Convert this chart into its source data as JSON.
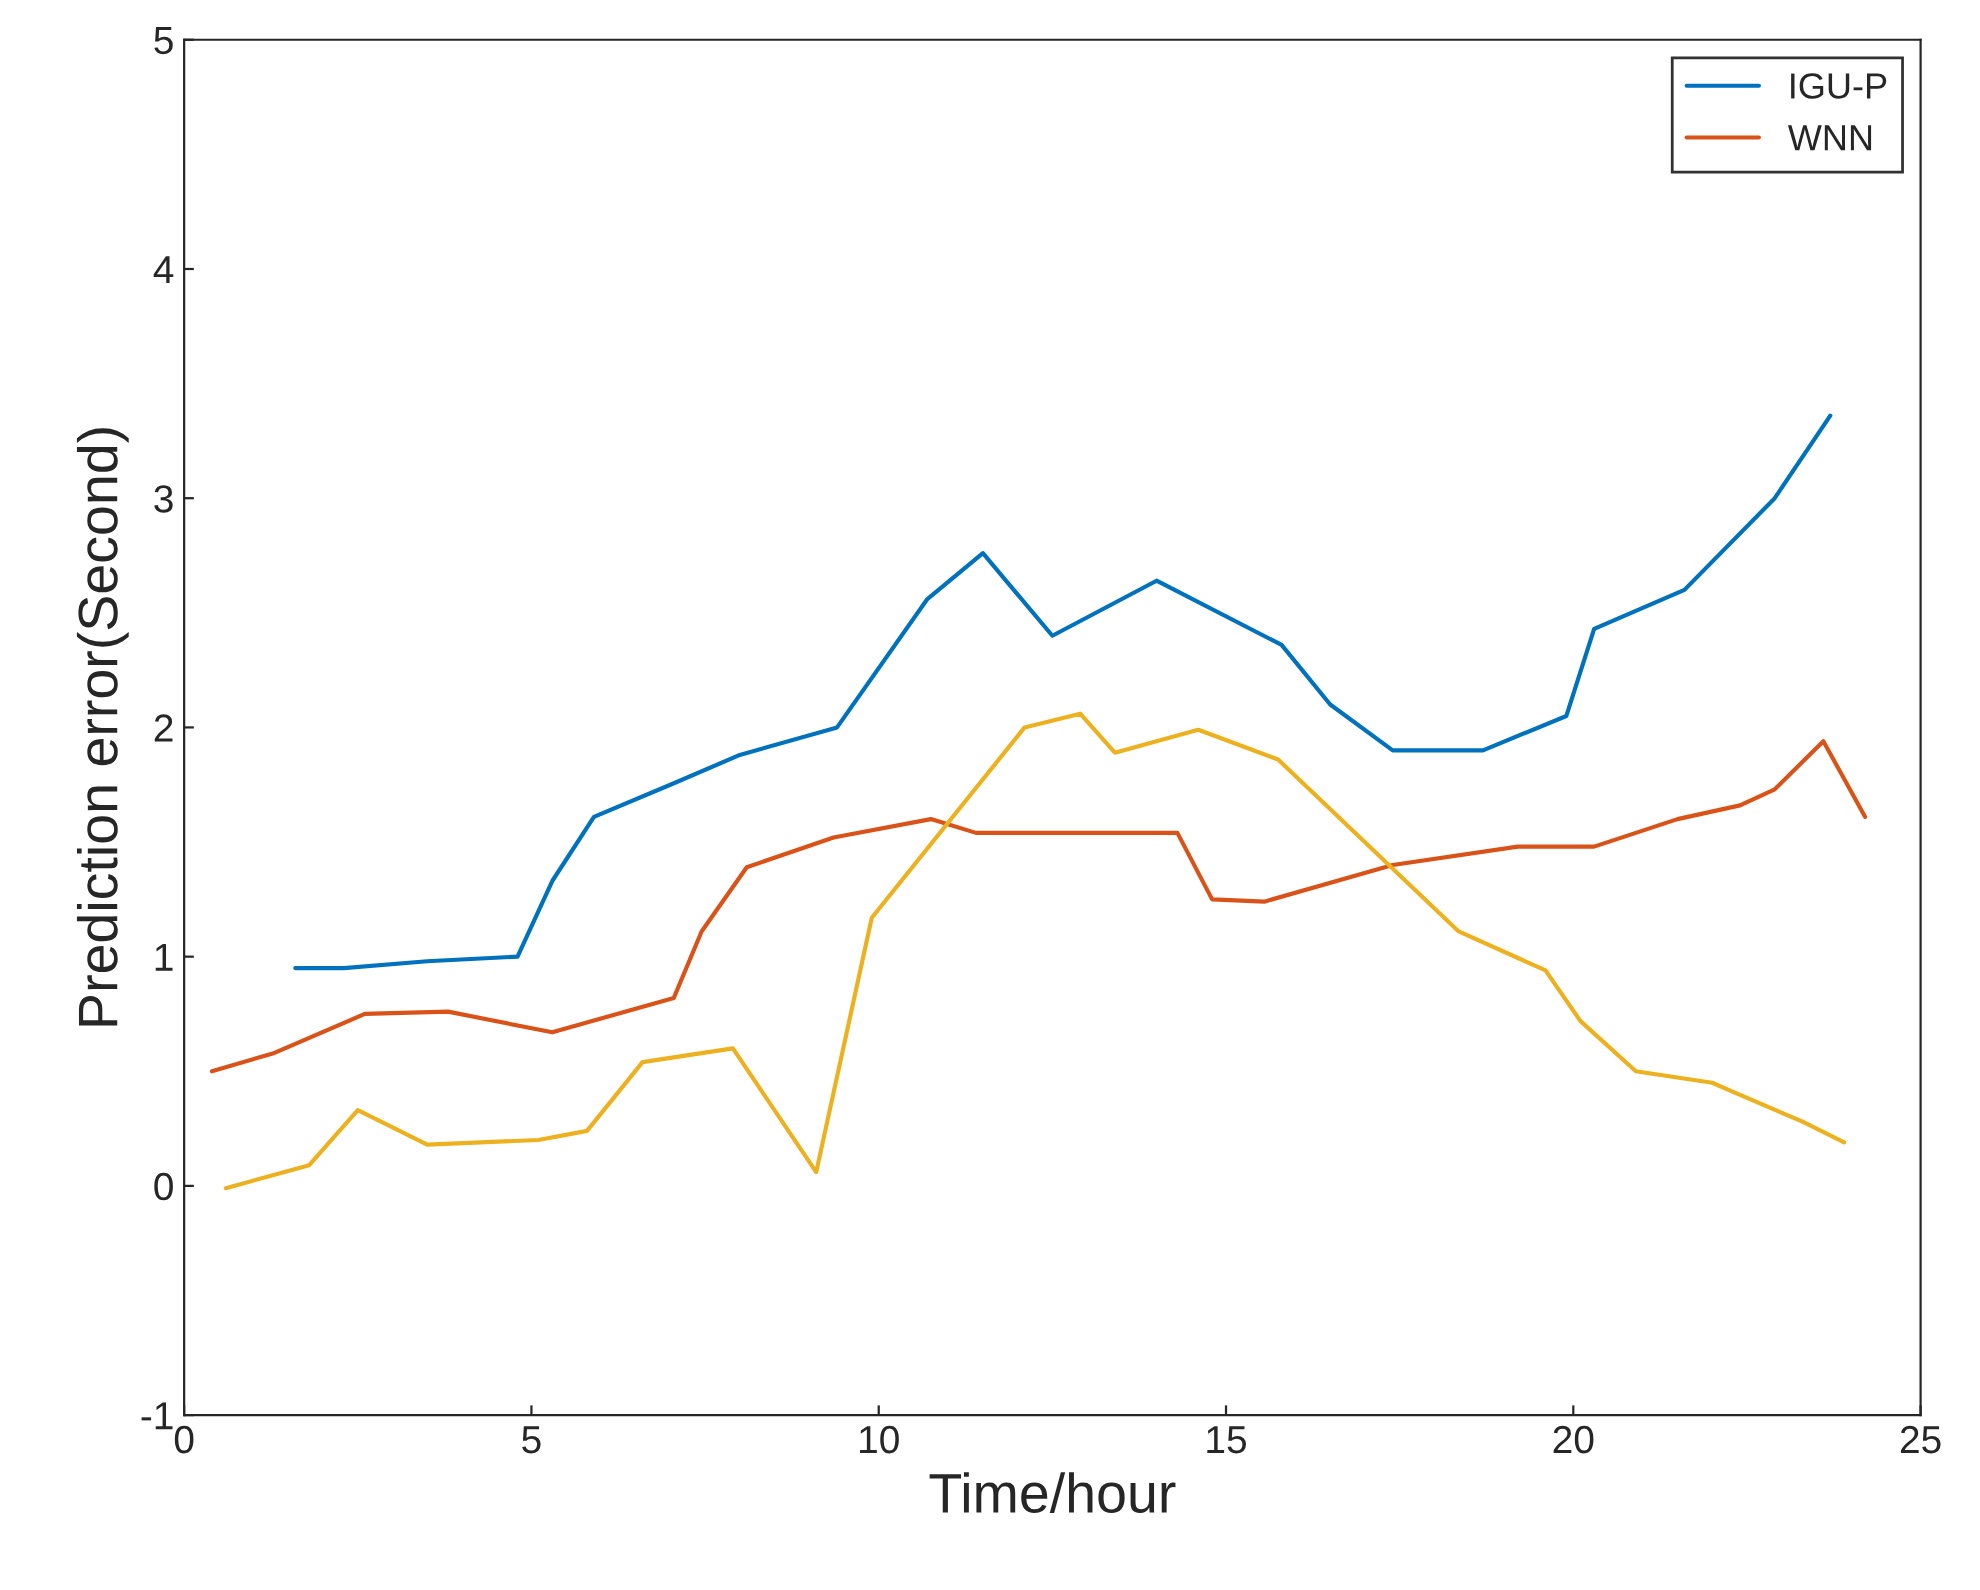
{
  "chart_data": {
    "type": "line",
    "xlabel": "Time/hour",
    "ylabel": "Prediction error(Second)",
    "xlim": [
      0,
      25
    ],
    "ylim": [
      -1,
      5
    ],
    "xticks": [
      0,
      5,
      10,
      15,
      20,
      25
    ],
    "yticks": [
      -1,
      0,
      1,
      2,
      3,
      4,
      5
    ],
    "grid": false,
    "legend": "top right",
    "series": [
      {
        "name": "IGU-P",
        "color": "#0072bd",
        "x": [
          1.6,
          2.3,
          3.5,
          4.8,
          5.3,
          5.9,
          7.0,
          8.0,
          9.4,
          10.7,
          11.5,
          12.5,
          14.0,
          15.8,
          16.5,
          17.4,
          18.7,
          19.9,
          20.3,
          21.6,
          22.9,
          23.7
        ],
        "values": [
          0.95,
          0.95,
          0.98,
          1.0,
          1.33,
          1.61,
          1.75,
          1.88,
          2.0,
          2.56,
          2.76,
          2.4,
          2.64,
          2.36,
          2.1,
          1.9,
          1.9,
          2.05,
          2.43,
          2.6,
          3.0,
          3.36
        ]
      },
      {
        "name": "WNN",
        "color": "#d95319",
        "x": [
          0.4,
          1.3,
          2.6,
          3.8,
          5.3,
          7.05,
          7.45,
          8.1,
          9.35,
          10.75,
          11.4,
          14.3,
          14.8,
          15.55,
          17.4,
          19.2,
          20.3,
          21.5,
          22.4,
          22.9,
          23.6,
          24.2
        ],
        "values": [
          0.5,
          0.58,
          0.75,
          0.76,
          0.67,
          0.82,
          1.11,
          1.39,
          1.52,
          1.6,
          1.54,
          1.54,
          1.25,
          1.24,
          1.4,
          1.48,
          1.48,
          1.6,
          1.66,
          1.73,
          1.94,
          1.61
        ]
      },
      {
        "color": "#edb120",
        "x": [
          0.6,
          1.8,
          2.5,
          3.5,
          5.1,
          5.8,
          6.6,
          7.9,
          9.1,
          9.9,
          12.1,
          12.9,
          13.4,
          14.6,
          15.75,
          18.35,
          19.6,
          20.1,
          20.9,
          22.0,
          22.3,
          23.3,
          23.9
        ],
        "values": [
          -0.01,
          0.09,
          0.33,
          0.18,
          0.2,
          0.24,
          0.54,
          0.6,
          0.06,
          1.17,
          2.0,
          2.06,
          1.89,
          1.99,
          1.86,
          1.11,
          0.94,
          0.72,
          0.5,
          0.45,
          0.41,
          0.28,
          0.19
        ]
      }
    ]
  }
}
